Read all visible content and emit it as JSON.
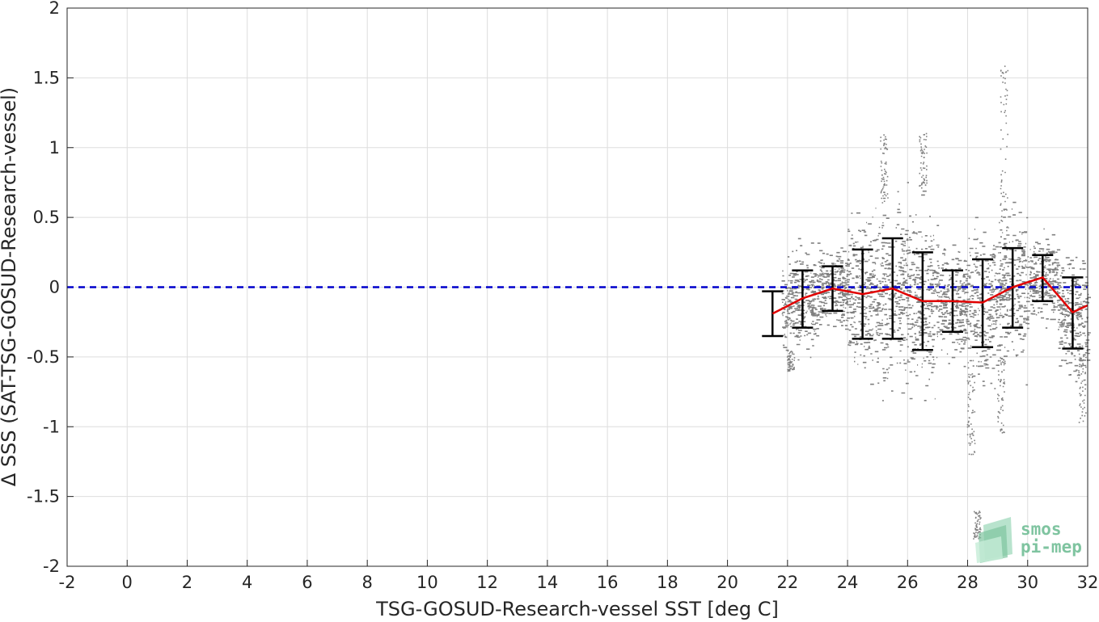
{
  "chart_data": {
    "type": "scatter",
    "xlabel": "TSG-GOSUD-Research-vessel SST [deg C]",
    "ylabel": "Δ SSS (SAT-TSG-GOSUD-Research-vessel)",
    "xlim": [
      -2,
      32
    ],
    "ylim": [
      -2,
      2
    ],
    "x_ticks": [
      -2,
      0,
      2,
      4,
      6,
      8,
      10,
      12,
      14,
      16,
      18,
      20,
      22,
      24,
      26,
      28,
      30,
      32
    ],
    "y_ticks": [
      -2,
      -1.5,
      -1,
      -0.5,
      0,
      0.5,
      1,
      1.5,
      2
    ],
    "y_tick_labels": [
      "-2",
      "-1.5",
      "-1",
      "-0.5",
      "0",
      "0.5",
      "1",
      "1.5",
      "2"
    ],
    "grid": true,
    "reference_line": {
      "y": 0,
      "style": "dashed",
      "color": "#0000cc"
    },
    "scatter_cloud": {
      "color": "#808080",
      "x_range": [
        21.8,
        32
      ],
      "y_range": [
        -1.8,
        1.65
      ]
    },
    "binned_mean": {
      "color": "#e00000",
      "x": [
        21.5,
        22.5,
        23.5,
        24.5,
        25.5,
        26.5,
        27.5,
        28.5,
        29.5,
        30.5,
        31.5,
        32.0
      ],
      "y": [
        -0.19,
        -0.08,
        -0.01,
        -0.05,
        -0.01,
        -0.1,
        -0.1,
        -0.11,
        0.0,
        0.07,
        -0.18,
        -0.13
      ]
    },
    "error_bars": {
      "color": "#000000",
      "x": [
        21.5,
        22.5,
        23.5,
        24.5,
        25.5,
        26.5,
        27.5,
        28.5,
        29.5,
        30.5,
        31.5
      ],
      "lower": [
        -0.35,
        -0.29,
        -0.17,
        -0.37,
        -0.37,
        -0.45,
        -0.32,
        -0.43,
        -0.29,
        -0.1,
        -0.44
      ],
      "upper": [
        -0.03,
        0.12,
        0.15,
        0.27,
        0.35,
        0.25,
        0.12,
        0.2,
        0.28,
        0.23,
        0.07
      ]
    }
  },
  "logo": {
    "line1": "smos",
    "line2": "pi-mep",
    "color": "#7fc4a0"
  }
}
